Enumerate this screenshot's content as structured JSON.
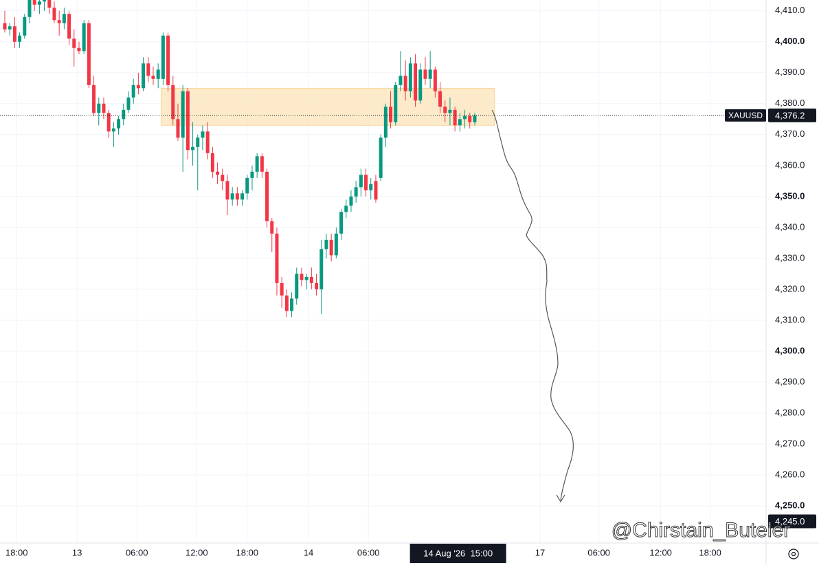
{
  "chart_data": {
    "type": "candlestick",
    "up_color": "#089981",
    "down_color": "#f23645",
    "ohlc": [
      [
        4406,
        4410,
        4403,
        4404
      ],
      [
        4404,
        4406,
        4402,
        4405
      ],
      [
        4405,
        4408,
        4398,
        4400
      ],
      [
        4400,
        4403,
        4398,
        4402
      ],
      [
        4402,
        4409,
        4401,
        4408
      ],
      [
        4408,
        4415,
        4406,
        4414
      ],
      [
        4414,
        4416,
        4410,
        4412
      ],
      [
        4412,
        4415,
        4409,
        4413
      ],
      [
        4413,
        4416,
        4410,
        4414
      ],
      [
        4414,
        4415,
        4409,
        4411
      ],
      [
        4411,
        4413,
        4406,
        4407
      ],
      [
        4407,
        4410,
        4402,
        4406
      ],
      [
        4406,
        4411,
        4404,
        4409
      ],
      [
        4409,
        4410,
        4399,
        4401
      ],
      [
        4401,
        4404,
        4392,
        4398
      ],
      [
        4398,
        4400,
        4396,
        4397
      ],
      [
        4397,
        4407,
        4396,
        4406
      ],
      [
        4406,
        4407,
        4385,
        4386
      ],
      [
        4386,
        4389,
        4376,
        4377
      ],
      [
        4377,
        4382,
        4373,
        4380
      ],
      [
        4380,
        4382,
        4375,
        4377
      ],
      [
        4377,
        4378,
        4369,
        4371
      ],
      [
        4371,
        4374,
        4366,
        4372
      ],
      [
        4372,
        4376,
        4370,
        4375
      ],
      [
        4375,
        4380,
        4373,
        4378
      ],
      [
        4378,
        4384,
        4377,
        4382
      ],
      [
        4382,
        4388,
        4380,
        4386
      ],
      [
        4386,
        4390,
        4383,
        4385
      ],
      [
        4385,
        4395,
        4384,
        4393
      ],
      [
        4393,
        4395,
        4387,
        4389
      ],
      [
        4389,
        4392,
        4386,
        4388
      ],
      [
        4388,
        4393,
        4385,
        4391
      ],
      [
        4388,
        4403,
        4386,
        4402
      ],
      [
        4402,
        4403,
        4384,
        4386
      ],
      [
        4386,
        4389,
        4373,
        4375
      ],
      [
        4375,
        4380,
        4368,
        4369
      ],
      [
        4369,
        4386,
        4358,
        4384
      ],
      [
        4384,
        4385,
        4362,
        4365
      ],
      [
        4365,
        4374,
        4360,
        4366
      ],
      [
        4366,
        4370,
        4352,
        4369
      ],
      [
        4369,
        4373,
        4365,
        4371
      ],
      [
        4371,
        4374,
        4362,
        4364
      ],
      [
        4364,
        4366,
        4356,
        4358
      ],
      [
        4358,
        4361,
        4354,
        4357
      ],
      [
        4357,
        4359,
        4352,
        4355
      ],
      [
        4355,
        4357,
        4344,
        4349
      ],
      [
        4349,
        4353,
        4347,
        4351
      ],
      [
        4351,
        4353,
        4347,
        4349
      ],
      [
        4349,
        4352,
        4347,
        4351
      ],
      [
        4351,
        4357,
        4349,
        4356
      ],
      [
        4356,
        4360,
        4352,
        4358
      ],
      [
        4358,
        4364,
        4356,
        4363
      ],
      [
        4363,
        4364,
        4356,
        4358
      ],
      [
        4358,
        4359,
        4340,
        4342
      ],
      [
        4342,
        4343,
        4332,
        4338
      ],
      [
        4338,
        4340,
        4318,
        4322
      ],
      [
        4322,
        4324,
        4314,
        4318
      ],
      [
        4318,
        4320,
        4311,
        4313
      ],
      [
        4313,
        4319,
        4311,
        4317
      ],
      [
        4317,
        4327,
        4315,
        4325
      ],
      [
        4325,
        4327,
        4321,
        4323
      ],
      [
        4323,
        4325,
        4320,
        4324
      ],
      [
        4324,
        4327,
        4320,
        4322
      ],
      [
        4322,
        4325,
        4318,
        4320
      ],
      [
        4320,
        4336,
        4312,
        4333
      ],
      [
        4333,
        4338,
        4330,
        4336
      ],
      [
        4336,
        4338,
        4329,
        4331
      ],
      [
        4331,
        4340,
        4330,
        4338
      ],
      [
        4338,
        4346,
        4336,
        4345
      ],
      [
        4345,
        4349,
        4343,
        4347
      ],
      [
        4347,
        4352,
        4345,
        4350
      ],
      [
        4350,
        4355,
        4348,
        4353
      ],
      [
        4353,
        4359,
        4350,
        4357
      ],
      [
        4357,
        4359,
        4350,
        4352
      ],
      [
        4352,
        4356,
        4349,
        4354
      ],
      [
        4355,
        4357,
        4348,
        4349
      ],
      [
        4356,
        4370,
        4355,
        4369
      ],
      [
        4369,
        4380,
        4366,
        4379
      ],
      [
        4379,
        4384,
        4372,
        4374
      ],
      [
        4374,
        4387,
        4373,
        4386
      ],
      [
        4386,
        4397,
        4384,
        4389
      ],
      [
        4389,
        4394,
        4381,
        4384
      ],
      [
        4384,
        4395,
        4382,
        4393
      ],
      [
        4393,
        4396,
        4379,
        4381
      ],
      [
        4381,
        4393,
        4380,
        4391
      ],
      [
        4391,
        4395,
        4386,
        4388
      ],
      [
        4388,
        4397,
        4385,
        4391
      ],
      [
        4391,
        4392,
        4382,
        4384
      ],
      [
        4384,
        4387,
        4377,
        4379
      ],
      [
        4379,
        4381,
        4374,
        4377
      ],
      [
        4377,
        4382,
        4373,
        4378
      ],
      [
        4378,
        4379,
        4371,
        4373
      ],
      [
        4373,
        4377,
        4371,
        4375
      ],
      [
        4375,
        4378,
        4372,
        4376
      ],
      [
        4376,
        4377,
        4372,
        4374
      ],
      [
        4374,
        4377,
        4373,
        4376.2
      ]
    ],
    "xlim": [
      -0.97,
      153.9
    ],
    "ylim": [
      4238,
      4413.5
    ],
    "xticks": [
      {
        "value": 2.4,
        "label": "18:00"
      },
      {
        "value": 14.6,
        "label": "13"
      },
      {
        "value": 26.7,
        "label": "06:00"
      },
      {
        "value": 38.8,
        "label": "12:00"
      },
      {
        "value": 49.0,
        "label": "18:00"
      },
      {
        "value": 61.4,
        "label": "14"
      },
      {
        "value": 73.5,
        "label": "06:00"
      },
      {
        "value": 108.2,
        "label": "17"
      },
      {
        "value": 120.1,
        "label": "06:00"
      },
      {
        "value": 132.6,
        "label": "12:00"
      },
      {
        "value": 142.6,
        "label": "18:00"
      }
    ],
    "yticks": [
      {
        "value": 4250,
        "label": "4,250.0"
      },
      {
        "value": 4260,
        "label": "4,260.0"
      },
      {
        "value": 4270,
        "label": "4,270.0"
      },
      {
        "value": 4280,
        "label": "4,280.0"
      },
      {
        "value": 4290,
        "label": "4,290.0"
      },
      {
        "value": 4300,
        "label": "4,300.0"
      },
      {
        "value": 4310,
        "label": "4,310.0"
      },
      {
        "value": 4320,
        "label": "4,320.0"
      },
      {
        "value": 4330,
        "label": "4,330.0"
      },
      {
        "value": 4340,
        "label": "4,340.0"
      },
      {
        "value": 4350,
        "label": "4,350.0"
      },
      {
        "value": 4360,
        "label": "4,360.0"
      },
      {
        "value": 4370,
        "label": "4,370.0"
      },
      {
        "value": 4380,
        "label": "4,380.0"
      },
      {
        "value": 4390,
        "label": "4,390.0"
      },
      {
        "value": 4400,
        "label": "4,400.0"
      },
      {
        "value": 4410,
        "label": "4,410.0"
      }
    ],
    "grid": true,
    "zone": {
      "top": 4385,
      "bottom": 4373,
      "start": 32,
      "end": 99,
      "color": "#fbe3b8"
    },
    "last_price": {
      "symbol": "XAUUSD",
      "value": 4376.2,
      "label": "4,376.2"
    },
    "marker_price": {
      "value": 4245,
      "label": "4,245.0"
    },
    "crosshair": {
      "value": 97.6,
      "label": "14 Aug '26  15:00"
    },
    "watermark": "@Chirstain_Buteler"
  }
}
